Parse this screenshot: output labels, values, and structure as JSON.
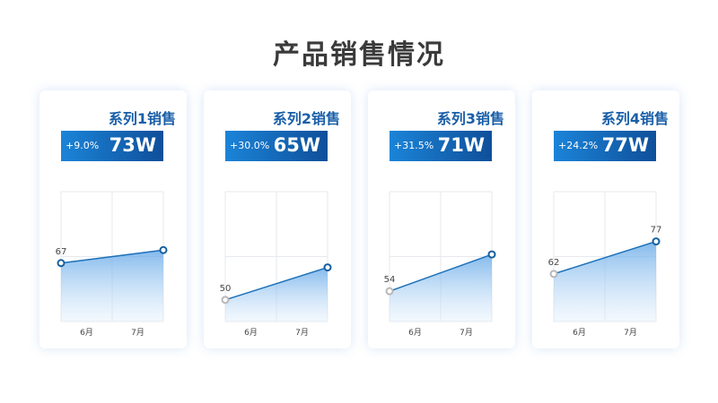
{
  "page": {
    "title": "产品销售情况"
  },
  "chart_data": [
    {
      "type": "area",
      "title": "系列1销售",
      "change": "+9.0%",
      "value_label": "73W",
      "categories": [
        "6月",
        "7月"
      ],
      "values": [
        67,
        73
      ],
      "data_labels": [
        "67",
        ""
      ],
      "ylim": [
        40,
        100
      ],
      "grid": true
    },
    {
      "type": "area",
      "title": "系列2销售",
      "change": "+30.0%",
      "value_label": "65W",
      "categories": [
        "6月",
        "7月"
      ],
      "values": [
        50,
        65
      ],
      "data_labels": [
        "50",
        ""
      ],
      "ylim": [
        40,
        100
      ],
      "grid": true
    },
    {
      "type": "area",
      "title": "系列3销售",
      "change": "+31.5%",
      "value_label": "71W",
      "categories": [
        "6月",
        "7月"
      ],
      "values": [
        54,
        71
      ],
      "data_labels": [
        "54",
        ""
      ],
      "ylim": [
        40,
        100
      ],
      "grid": true
    },
    {
      "type": "area",
      "title": "系列4销售",
      "change": "+24.2%",
      "value_label": "77W",
      "categories": [
        "6月",
        "7月"
      ],
      "values": [
        62,
        77
      ],
      "data_labels": [
        "62",
        "77"
      ],
      "ylim": [
        40,
        100
      ],
      "grid": true
    }
  ],
  "colors": {
    "accent": "#1a5fa8",
    "line": "#1a6fb8",
    "marker_dim": "#b8b8b8",
    "banner_start": "#1b84d8",
    "banner_end": "#0f4f9a"
  }
}
